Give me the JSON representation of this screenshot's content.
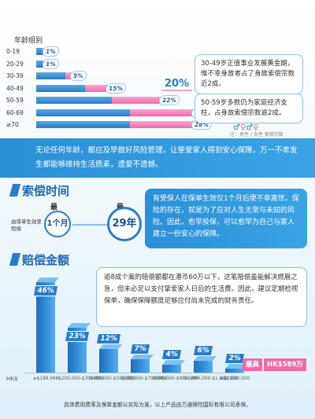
{
  "age_chart": {
    "title": "年龄组别",
    "rows": [
      {
        "label": "0-19",
        "blue": 0.04,
        "pink": 0.04,
        "pct": "1%"
      },
      {
        "label": "20-29",
        "blue": 0.04,
        "pink": 0.04,
        "pct": "1%"
      },
      {
        "label": "30-39",
        "blue": 0.18,
        "pink": 0.07,
        "pct": "5%"
      },
      {
        "label": "40-49",
        "blue": 0.3,
        "pink": 0.17,
        "pct": "15%"
      },
      {
        "label": "50-59",
        "blue": 0.47,
        "pink": 0.33,
        "pct": "22%"
      },
      {
        "label": "60-69",
        "blue": 0.58,
        "pink": 0.42,
        "pct": "28%"
      },
      {
        "label": "≥70",
        "blue": 0.58,
        "pink": 0.42,
        "pct": "28%"
      }
    ],
    "highlight": "20%",
    "callout_30": "30-49岁正值事业发展黄金期，惟不幸身故者占了身故索偿宗数近2成。",
    "callout_50": "50-59岁多数仍为家庭经济支柱，占身故索偿宗数逾2成。",
    "legend": "注：男性 / 女性 索偿宗数"
  },
  "banner_text": "无论任何年龄，都应及早做好风险管理，让挚爱家人得到安心保障，万一不幸发生都能够维持生活质素，遗爱不遗憾。",
  "claim_time": {
    "title": "索偿时间",
    "shortest_label": "最短",
    "longest_label": "最长",
    "from_label": "由保单生效至赔偿",
    "shortest_value": "1个月",
    "longest_value": "29年",
    "text": "有受保人在保单生效仅1个月后便不幸离世。保险的存在，就是为了应对人生无常与未知的风险。因此，愈早投保，可以愈早为自己与家人建立一份安心的保障。"
  },
  "chart_data": {
    "type": "bar",
    "title": "赔偿金额",
    "xlabel": "HK$",
    "categories": [
      "≤$199,999",
      "$200,000-$399,999",
      "$400,000-$599,999",
      "$600,000-$799,999",
      "$800,000-$999,999",
      "$1,000,000-$1,999,999",
      "≥$2,000,000"
    ],
    "values": [
      46,
      23,
      12,
      7,
      4,
      6,
      2
    ],
    "value_labels": [
      "46%",
      "23%",
      "12%",
      "7%",
      "4%",
      "6%",
      "2%"
    ],
    "ylim": [
      0,
      50
    ],
    "max_label": "最高",
    "max_value": "HK$589万"
  },
  "amount_text": "逾8成个案的赔偿额都在港币60万以下，这笔赔偿虽能解决燃眉之急，但未必足以支付挚爱家人日后的生活费。因此，建议定期检视保单，确保保障额度足够应付尚未完成的财务责任。",
  "footnote": "具体费用费率及保单金额以实际为准，以上产品由万通保险国际有限公司承保。",
  "colors": {
    "blue": "#2a7cc7",
    "pink": "#ee6aa8",
    "banner": "#2b8fd6"
  }
}
